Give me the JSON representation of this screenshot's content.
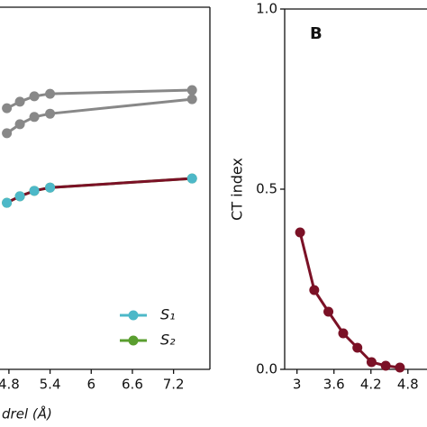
{
  "chart_data": [
    {
      "type": "line",
      "x_label": "drel (Å)",
      "xlim": [
        4.67,
        7.73
      ],
      "xticks": [
        4.8,
        5.4,
        6.0,
        6.6,
        7.2
      ],
      "ylim": [
        0,
        1
      ],
      "legend": "lower right",
      "series": [
        {
          "color": "#888888",
          "markers": true,
          "x": [
            4.77,
            4.96,
            5.17,
            5.4,
            7.47
          ],
          "values": [
            0.721,
            0.739,
            0.754,
            0.761,
            0.771
          ]
        },
        {
          "color": "#888888",
          "markers": true,
          "x": [
            4.77,
            4.96,
            5.17,
            5.4,
            7.47
          ],
          "values": [
            0.652,
            0.677,
            0.697,
            0.706,
            0.746
          ]
        },
        {
          "name": "S₂",
          "color": "#5a9e2f",
          "markers": true,
          "x": [
            4.77,
            4.96,
            5.17,
            5.4,
            7.47
          ],
          "values": [
            0.46,
            0.478,
            0.493,
            0.502,
            0.527
          ]
        },
        {
          "color": "#7b1126",
          "markers": false,
          "x": [
            4.77,
            4.96,
            5.17,
            5.4,
            7.47
          ],
          "values": [
            0.46,
            0.478,
            0.493,
            0.502,
            0.527
          ]
        },
        {
          "name": "S₁",
          "color": "#4db8c8",
          "markers": true,
          "line": false,
          "x": [
            4.77,
            4.96,
            5.17,
            5.4,
            7.47
          ],
          "values": [
            0.46,
            0.478,
            0.493,
            0.502,
            0.527
          ]
        }
      ]
    },
    {
      "type": "line",
      "panel_label": "B",
      "y_label": "CT index",
      "xlim": [
        2.8,
        5.11
      ],
      "xticks": [
        3.0,
        3.6,
        4.2,
        4.8
      ],
      "ylim": [
        0,
        1
      ],
      "yticks": [
        {
          "value": 0,
          "label": "0.0"
        },
        0.5,
        {
          "value": 1,
          "label": "1.0"
        }
      ],
      "series": [
        {
          "color": "#7b1126",
          "markers": true,
          "x": [
            3.05,
            3.28,
            3.51,
            3.75,
            3.98,
            4.21,
            4.44,
            4.67
          ],
          "values": [
            0.38,
            0.22,
            0.16,
            0.1,
            0.06,
            0.02,
            0.01,
            0.005
          ]
        }
      ]
    }
  ]
}
